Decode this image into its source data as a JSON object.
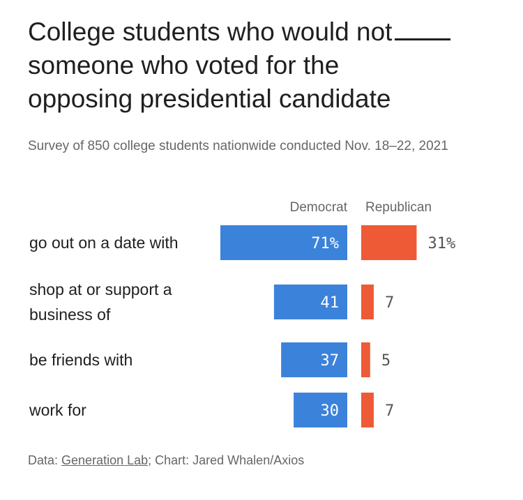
{
  "header": {
    "title": "College students who would not",
    "title_line2": "someone who voted for the",
    "title_line3": "opposing presidential candidate",
    "subtitle": "Survey of 850 college students nationwide conducted Nov. 18–22, 2021"
  },
  "footer": {
    "data_prefix": "Data: ",
    "source": "Generation Lab",
    "credit": "; Chart: Jared Whalen/Axios"
  },
  "colors": {
    "democrat": "#3b82db",
    "republican": "#ee5a35"
  },
  "chart_data": {
    "type": "bar",
    "categories": [
      [
        "go out on a date with"
      ],
      [
        "shop at or support a",
        "business of"
      ],
      [
        "be friends with"
      ],
      [
        "work for"
      ]
    ],
    "series": [
      {
        "name": "Democrat",
        "values": [
          71,
          41,
          37,
          30
        ],
        "labels": [
          "71%",
          "41",
          "37",
          "30"
        ]
      },
      {
        "name": "Republican",
        "values": [
          31,
          7,
          5,
          7
        ],
        "labels": [
          "31%",
          "7",
          "5",
          "7"
        ]
      }
    ]
  }
}
